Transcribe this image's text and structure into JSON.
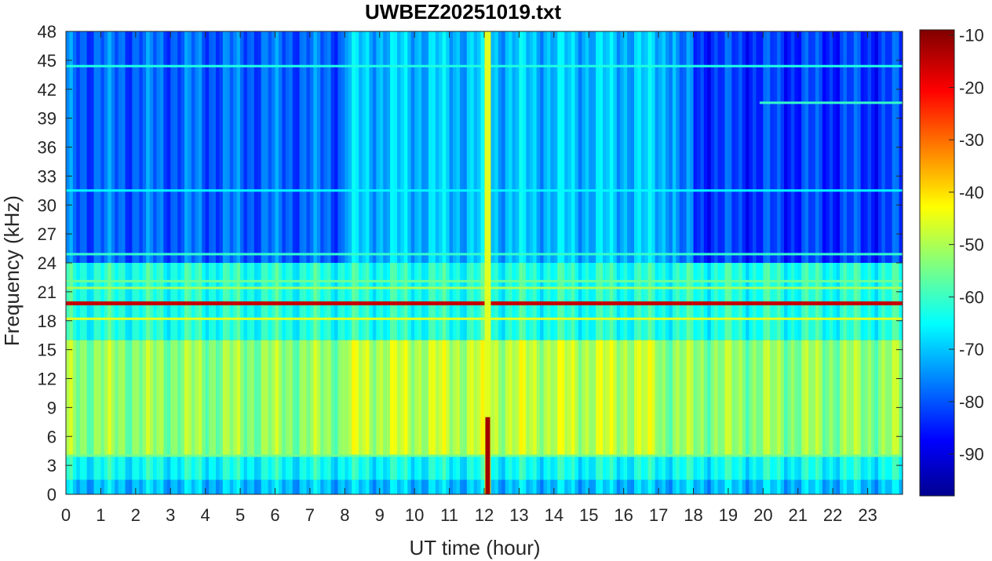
{
  "chart_data": {
    "type": "heatmap",
    "title": "UWBEZ20251019.txt",
    "xlabel": "UT time (hour)",
    "ylabel": "Frequency (kHz)",
    "xlim": [
      0,
      24
    ],
    "ylim": [
      0,
      48
    ],
    "x_ticks": [
      0,
      1,
      2,
      3,
      4,
      5,
      6,
      7,
      8,
      9,
      10,
      11,
      12,
      13,
      14,
      15,
      16,
      17,
      18,
      19,
      20,
      21,
      22,
      23
    ],
    "x_tick_labels": [
      "0",
      "1",
      "2",
      "3",
      "4",
      "5",
      "6",
      "7",
      "8",
      "9",
      "10",
      "11",
      "12",
      "13",
      "14",
      "15",
      "16",
      "17",
      "18",
      "19",
      "20",
      "21",
      "22",
      "23"
    ],
    "y_ticks": [
      0,
      3,
      6,
      9,
      12,
      15,
      18,
      21,
      24,
      27,
      30,
      33,
      36,
      39,
      42,
      45,
      48
    ],
    "y_tick_labels": [
      "0",
      "3",
      "6",
      "9",
      "12",
      "15",
      "18",
      "21",
      "24",
      "27",
      "30",
      "33",
      "36",
      "39",
      "42",
      "45",
      "48"
    ],
    "colormap": "jet",
    "colorbar": {
      "clim": [
        -98,
        -9
      ],
      "ticks": [
        -10,
        -20,
        -30,
        -40,
        -50,
        -60,
        -70,
        -80,
        -90
      ],
      "tick_labels": [
        "-10",
        "-20",
        "-30",
        "-40",
        "-50",
        "-60",
        "-70",
        "-80",
        "-90"
      ]
    },
    "background_bands": [
      {
        "f_range": [
          0,
          1.5
        ],
        "level_db": -70
      },
      {
        "f_range": [
          1.5,
          4
        ],
        "level_db": -64
      },
      {
        "f_range": [
          4,
          16
        ],
        "level_db": -52
      },
      {
        "f_range": [
          16,
          24
        ],
        "level_db": -62
      },
      {
        "f_range": [
          24,
          48
        ],
        "level_db": -78
      }
    ],
    "horizontal_lines": [
      {
        "freq_khz": 19.8,
        "level_db": -15,
        "t_range": [
          0,
          24
        ]
      },
      {
        "freq_khz": 18.2,
        "level_db": -45,
        "t_range": [
          0,
          24
        ]
      },
      {
        "freq_khz": 21.4,
        "level_db": -50,
        "t_range": [
          0,
          24
        ]
      },
      {
        "freq_khz": 22.1,
        "level_db": -55,
        "t_range": [
          0,
          24
        ]
      },
      {
        "freq_khz": 24.9,
        "level_db": -60,
        "t_range": [
          0,
          24
        ]
      },
      {
        "freq_khz": 44.4,
        "level_db": -62,
        "t_range": [
          0,
          24
        ]
      },
      {
        "freq_khz": 31.5,
        "level_db": -65,
        "t_range": [
          0,
          24
        ]
      },
      {
        "freq_khz": 4.0,
        "level_db": -55,
        "t_range": [
          0,
          24
        ]
      },
      {
        "freq_khz": 40.6,
        "level_db": -60,
        "t_range": [
          19.9,
          24
        ]
      }
    ],
    "vertical_event": {
      "time_hour": 12.1,
      "level_db": -45,
      "low_freq_peak_db": -12,
      "low_freq_range": [
        0,
        8
      ]
    }
  }
}
